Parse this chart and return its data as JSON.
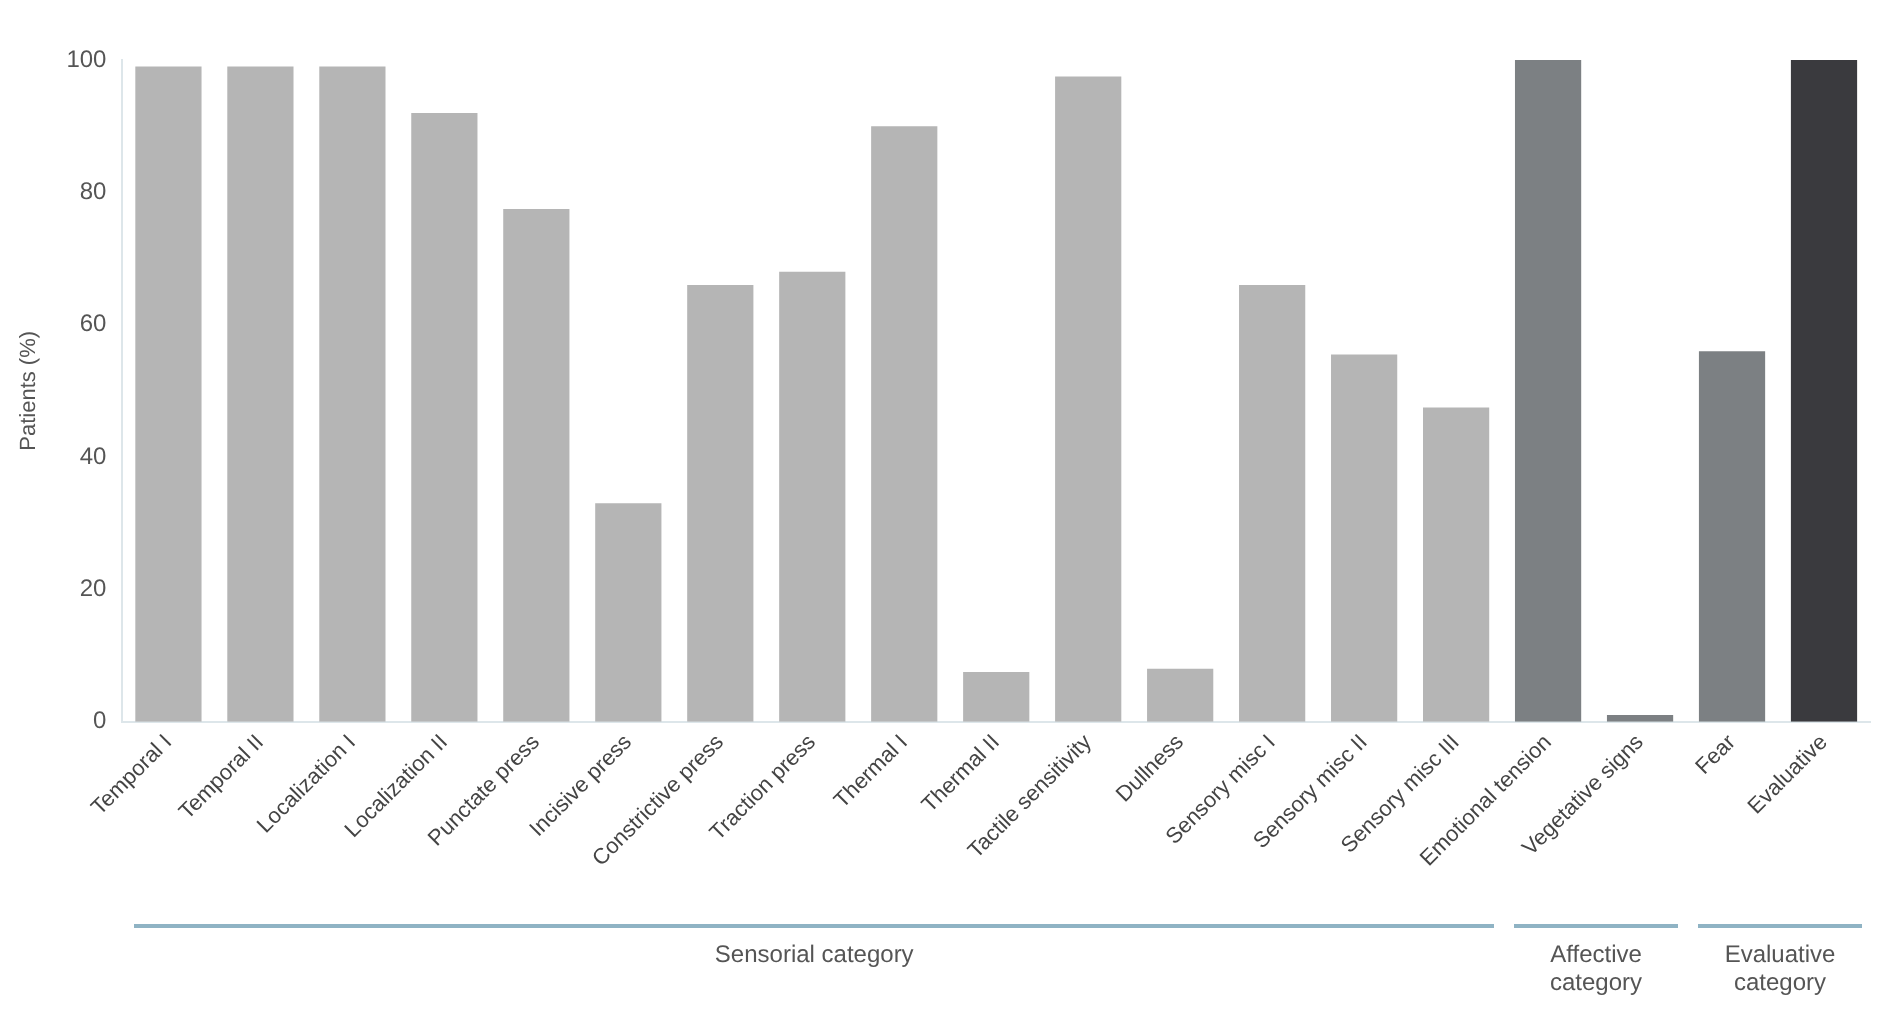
{
  "chart_data": {
    "type": "bar",
    "ylabel": "Patients (%)",
    "categories": [
      "Temporal I",
      "Temporal II",
      "Localization I",
      "Localization II",
      "Punctate press",
      "Incisive press",
      "Constrictive press",
      "Traction press",
      "Thermal I",
      "Thermal II",
      "Tactile sensitivity",
      "Dullness",
      "Sensory misc I",
      "Sensory misc II",
      "Sensory misc III",
      "Emotional tension",
      "Vegetative signs",
      "Fear",
      "Evaluative"
    ],
    "values": [
      99,
      99,
      99,
      92,
      77.5,
      33,
      66,
      68,
      90,
      7.5,
      97.5,
      8,
      66,
      55.5,
      47.5,
      100,
      1,
      56,
      100
    ],
    "colors": [
      "#b5b5b5",
      "#b5b5b5",
      "#b5b5b5",
      "#b5b5b5",
      "#b5b5b5",
      "#b5b5b5",
      "#b5b5b5",
      "#b5b5b5",
      "#b5b5b5",
      "#b5b5b5",
      "#b5b5b5",
      "#b5b5b5",
      "#b5b5b5",
      "#b5b5b5",
      "#b5b5b5",
      "#7c8083",
      "#7c8083",
      "#7c8083",
      "#3a3a3e"
    ],
    "ylim": [
      0,
      100
    ],
    "yticks": [
      0,
      20,
      40,
      60,
      80,
      100
    ],
    "grid": false,
    "legend": false,
    "annotations": [
      "Sensorial category",
      "Affective category",
      "Evaluative category"
    ]
  }
}
